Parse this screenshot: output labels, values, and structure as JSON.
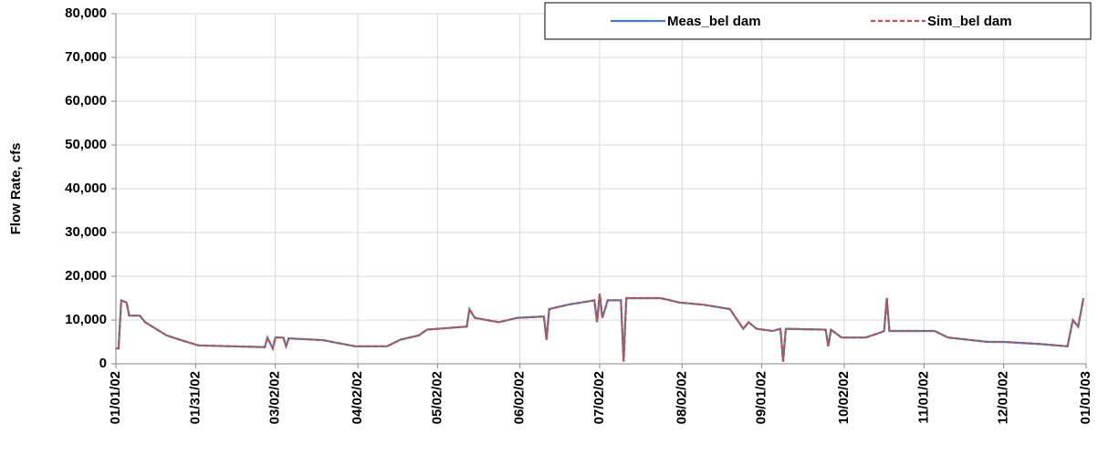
{
  "chart_data": {
    "type": "line",
    "y_label": "Flow Rate, cfs",
    "x": [
      "01/01/02",
      "01/02/02",
      "01/03/02",
      "01/05/02",
      "01/06/02",
      "01/10/02",
      "01/12/02",
      "01/16/02",
      "01/20/02",
      "01/25/02",
      "02/01/02",
      "02/26/02",
      "02/27/02",
      "03/01/02",
      "03/02/02",
      "03/05/02",
      "03/06/02",
      "03/07/02",
      "03/20/02",
      "03/25/02",
      "04/01/02",
      "04/13/02",
      "04/18/02",
      "04/25/02",
      "04/28/02",
      "05/13/02",
      "05/14/02",
      "05/16/02",
      "05/25/02",
      "06/01/02",
      "06/11/02",
      "06/12/02",
      "06/13/02",
      "06/20/02",
      "06/25/02",
      "06/30/02",
      "07/01/02",
      "07/02/02",
      "07/03/02",
      "07/05/02",
      "07/10/02",
      "07/11/02",
      "07/12/02",
      "07/25/02",
      "08/01/02",
      "08/10/02",
      "08/20/02",
      "08/25/02",
      "08/27/02",
      "08/30/02",
      "09/05/02",
      "09/08/02",
      "09/09/02",
      "09/10/02",
      "09/25/02",
      "09/26/02",
      "09/27/02",
      "10/01/02",
      "10/10/02",
      "10/15/02",
      "10/17/02",
      "10/18/02",
      "10/19/02",
      "10/25/02",
      "11/05/02",
      "11/10/02",
      "11/25/02",
      "12/01/02",
      "12/15/02",
      "12/25/02",
      "12/27/02",
      "12/29/02",
      "12/31/02"
    ],
    "series": [
      {
        "name": "Meas_bel dam",
        "color": "#4a7ebb",
        "dashed": false,
        "values": [
          3500,
          3500,
          14500,
          14000,
          11000,
          11000,
          9500,
          8000,
          6500,
          5500,
          4200,
          3800,
          6000,
          3500,
          6000,
          6000,
          4000,
          5800,
          5400,
          4800,
          4000,
          4000,
          5500,
          6500,
          7800,
          8500,
          12500,
          10500,
          9500,
          10500,
          10800,
          5500,
          12500,
          13500,
          14000,
          14500,
          9500,
          16000,
          10500,
          14500,
          14500,
          500,
          15000,
          15000,
          14000,
          13500,
          12500,
          8000,
          9500,
          8000,
          7500,
          8000,
          500,
          8000,
          7800,
          4000,
          7800,
          6000,
          6000,
          7000,
          7500,
          15000,
          7500,
          7500,
          7500,
          6000,
          5000,
          5000,
          4500,
          4000,
          10000,
          8500,
          15000
        ]
      },
      {
        "name": "Sim_bel dam",
        "color": "#c0504d",
        "dashed": true,
        "values": [
          3500,
          3500,
          14500,
          14000,
          11000,
          11000,
          9500,
          8000,
          6500,
          5500,
          4200,
          3800,
          6000,
          3500,
          6000,
          6000,
          4000,
          5800,
          5400,
          4800,
          4000,
          4000,
          5500,
          6500,
          7800,
          8500,
          12500,
          10500,
          9500,
          10500,
          10800,
          5500,
          12500,
          13500,
          14000,
          14500,
          9500,
          16000,
          10500,
          14500,
          14500,
          500,
          15000,
          15000,
          14000,
          13500,
          12500,
          8000,
          9500,
          8000,
          7500,
          8000,
          500,
          8000,
          7800,
          4000,
          7800,
          6000,
          6000,
          7000,
          7500,
          15000,
          7500,
          7500,
          7500,
          6000,
          5000,
          5000,
          4500,
          4000,
          10000,
          8500,
          15000
        ]
      }
    ],
    "xlim": [
      "01/01/02",
      "01/01/03"
    ],
    "xticks": [
      "01/01/02",
      "01/31/02",
      "03/02/02",
      "04/02/02",
      "05/02/02",
      "06/02/02",
      "07/02/02",
      "08/02/02",
      "09/01/02",
      "10/02/02",
      "11/01/02",
      "12/01/02",
      "01/01/03"
    ],
    "ylim": [
      0,
      80000
    ],
    "yticks": [
      0,
      {
        "value": 10000,
        "label": "10,000"
      },
      {
        "value": 20000,
        "label": "20,000"
      },
      {
        "value": 30000,
        "label": "30,000"
      },
      {
        "value": 40000,
        "label": "40,000"
      },
      {
        "value": 50000,
        "label": "50,000"
      },
      {
        "value": 60000,
        "label": "60,000"
      },
      {
        "value": 70000,
        "label": "70,000"
      },
      {
        "value": 80000,
        "label": "80,000"
      }
    ],
    "grid": true,
    "legend": "top-right"
  }
}
